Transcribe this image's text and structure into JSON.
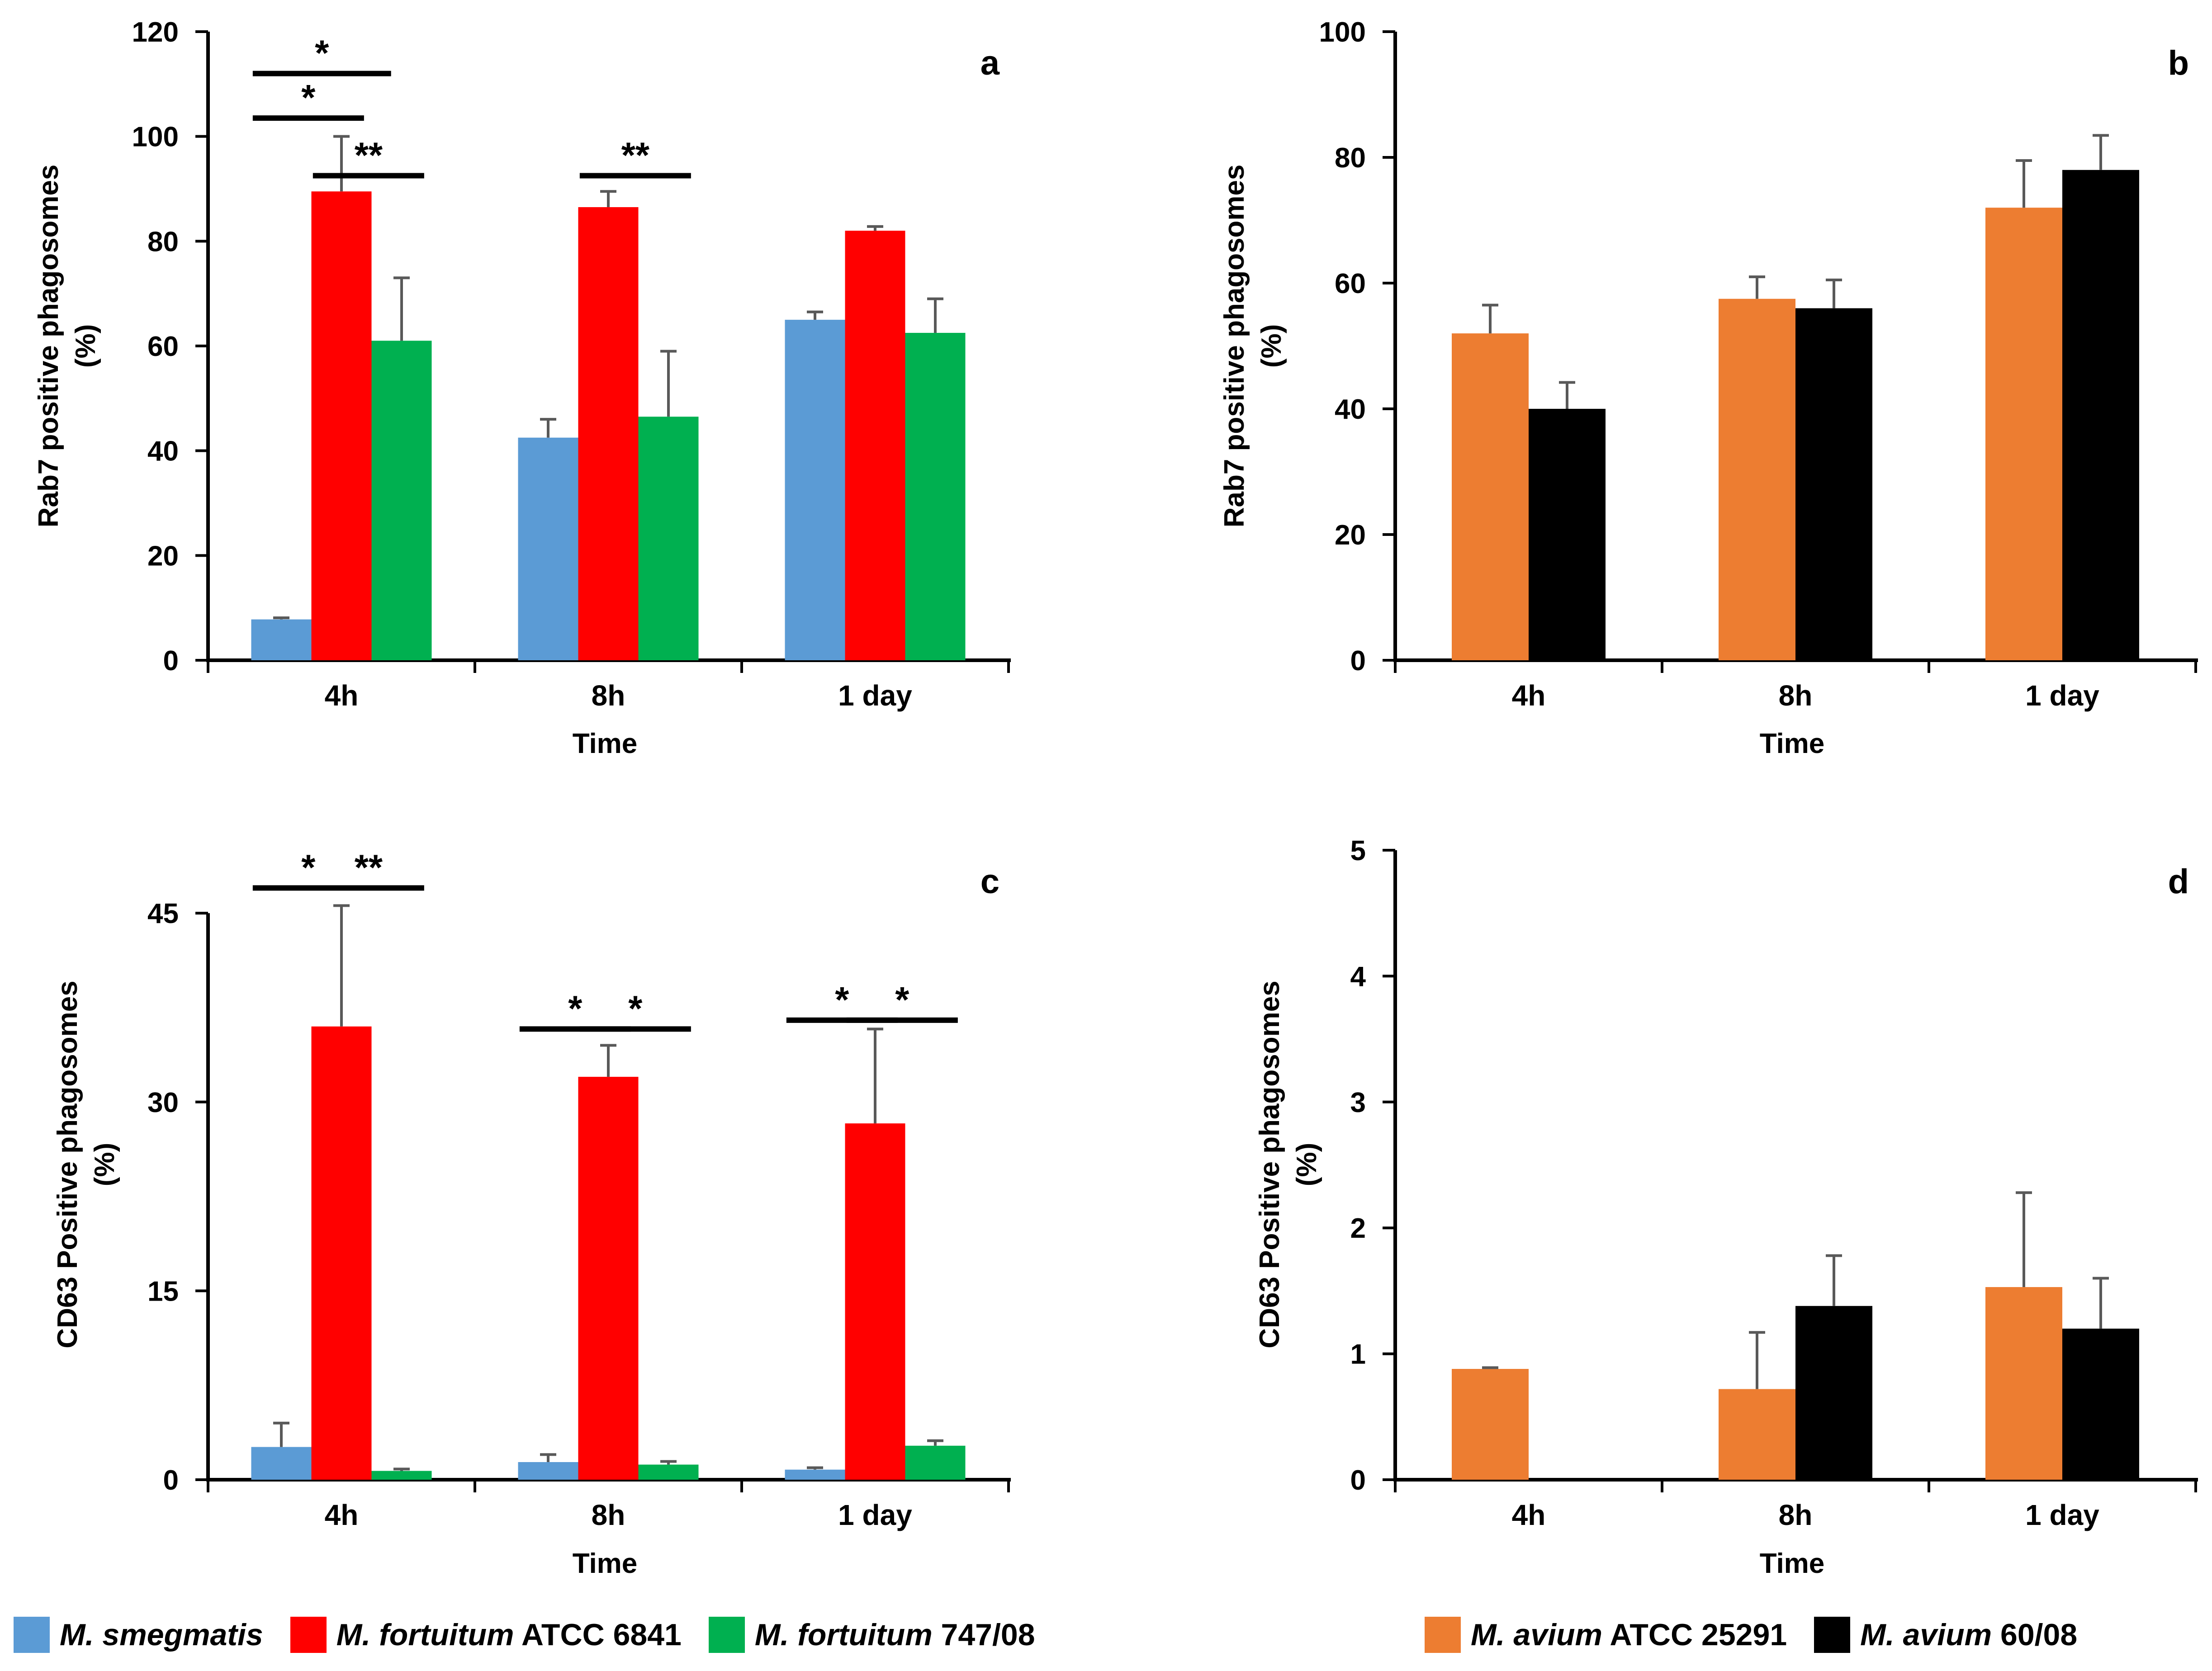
{
  "colors": {
    "smegmatis": "#5B9BD5",
    "fortuitum_atcc": "#FF0000",
    "fortuitum_747": "#00B050",
    "avium_atcc": "#ED7D31",
    "avium_60": "#000000"
  },
  "legend_left": [
    {
      "italic": "M. smegmatis",
      "rest": "",
      "color": "#5B9BD5"
    },
    {
      "italic": "M. fortuitum",
      "rest": " ATCC 6841",
      "color": "#FF0000"
    },
    {
      "italic": "M. fortuitum",
      "rest": " 747/08",
      "color": "#00B050"
    }
  ],
  "legend_right": [
    {
      "italic": "M. avium",
      "rest": " ATCC 25291",
      "color": "#ED7D31"
    },
    {
      "italic": "M. avium",
      "rest": " 60/08",
      "color": "#000000"
    }
  ],
  "chart_data": [
    {
      "panel": "a",
      "type": "bar",
      "xlabel": "Time",
      "ylabel_line1": "Rab7 positive phagosomes",
      "ylabel_line2": "(%)",
      "categories": [
        "4h",
        "8h",
        "1 day"
      ],
      "ylim": [
        0,
        120
      ],
      "yticks": [
        0,
        20,
        40,
        60,
        80,
        100,
        120
      ],
      "series": [
        {
          "name": "M. smegmatis",
          "color": "#5B9BD5",
          "values": [
            7.8,
            42.5,
            65
          ],
          "errors": [
            0.3,
            3.5,
            1.5
          ]
        },
        {
          "name": "M. fortuitum ATCC 6841",
          "color": "#FF0000",
          "values": [
            89.5,
            86.5,
            82
          ],
          "errors": [
            10.5,
            3,
            0.8
          ]
        },
        {
          "name": "M. fortuitum 747/08",
          "color": "#00B050",
          "values": [
            61,
            46.5,
            62.5
          ],
          "errors": [
            12,
            12.5,
            6.5
          ]
        }
      ],
      "significance": [
        {
          "group": 0,
          "from": 0,
          "to": 1,
          "label": "*",
          "level": 103.5
        },
        {
          "group": 0,
          "from": 0,
          "to": 1.45,
          "label": "*",
          "level": 112
        },
        {
          "group": 0,
          "from": 1,
          "to": 2,
          "label": "**",
          "level": 92.5
        },
        {
          "group": 1,
          "from": 1,
          "to": 2,
          "label": "**",
          "level": 92.5
        }
      ]
    },
    {
      "panel": "b",
      "type": "bar",
      "xlabel": "Time",
      "ylabel_line1": "Rab7 positive phagosomes",
      "ylabel_line2": "(%)",
      "categories": [
        "4h",
        "8h",
        "1 day"
      ],
      "ylim": [
        0,
        100
      ],
      "yticks": [
        0,
        20,
        40,
        60,
        80,
        100
      ],
      "series": [
        {
          "name": "M. avium ATCC 25291",
          "color": "#ED7D31",
          "values": [
            52,
            57.5,
            72
          ],
          "errors": [
            4.5,
            3.5,
            7.5
          ]
        },
        {
          "name": "M. avium 60/08",
          "color": "#000000",
          "values": [
            40,
            56,
            78
          ],
          "errors": [
            4.2,
            4.5,
            5.5
          ]
        }
      ],
      "significance": []
    },
    {
      "panel": "c",
      "type": "bar",
      "xlabel": "Time",
      "ylabel_line1": "CD63 Positive phagosomes",
      "ylabel_line2": "(%)",
      "categories": [
        "4h",
        "8h",
        "1 day"
      ],
      "ylim": [
        0,
        50
      ],
      "yticks": [
        0,
        15,
        30,
        45
      ],
      "series": [
        {
          "name": "M. smegmatis",
          "color": "#5B9BD5",
          "values": [
            2.6,
            1.4,
            0.8
          ],
          "errors": [
            1.9,
            0.6,
            0.15
          ]
        },
        {
          "name": "M. fortuitum ATCC 6841",
          "color": "#FF0000",
          "values": [
            36,
            32,
            28.3
          ],
          "errors": [
            9.6,
            2.5,
            7.5
          ]
        },
        {
          "name": "M. fortuitum 747/08",
          "color": "#00B050",
          "values": [
            0.7,
            1.2,
            2.7
          ],
          "errors": [
            0.15,
            0.25,
            0.4
          ]
        }
      ],
      "significance": [
        {
          "group": 0,
          "from": 0,
          "to": 1,
          "label": "*",
          "level": 47
        },
        {
          "group": 0,
          "from": 1,
          "to": 2,
          "label": "**",
          "level": 47
        },
        {
          "group": 1,
          "from": 0,
          "to": 1,
          "label": "*",
          "level": 35.8
        },
        {
          "group": 1,
          "from": 1,
          "to": 2,
          "label": "*",
          "level": 35.8
        },
        {
          "group": 2,
          "from": 0,
          "to": 1,
          "label": "*",
          "level": 36.5
        },
        {
          "group": 2,
          "from": 1,
          "to": 2,
          "label": "*",
          "level": 36.5
        }
      ]
    },
    {
      "panel": "d",
      "type": "bar",
      "xlabel": "Time",
      "ylabel_line1": "CD63 Positive phagosomes",
      "ylabel_line2": "(%)",
      "categories": [
        "4h",
        "8h",
        "1 day"
      ],
      "ylim": [
        0,
        5
      ],
      "yticks": [
        0,
        1,
        2,
        3,
        4,
        5
      ],
      "series": [
        {
          "name": "M. avium ATCC 25291",
          "color": "#ED7D31",
          "values": [
            0.88,
            0.72,
            1.53
          ],
          "errors": [
            0.01,
            0.45,
            0.75
          ]
        },
        {
          "name": "M. avium 60/08",
          "color": "#000000",
          "values": [
            0,
            1.38,
            1.2
          ],
          "errors": [
            0,
            0.4,
            0.4
          ]
        }
      ],
      "significance": []
    }
  ]
}
